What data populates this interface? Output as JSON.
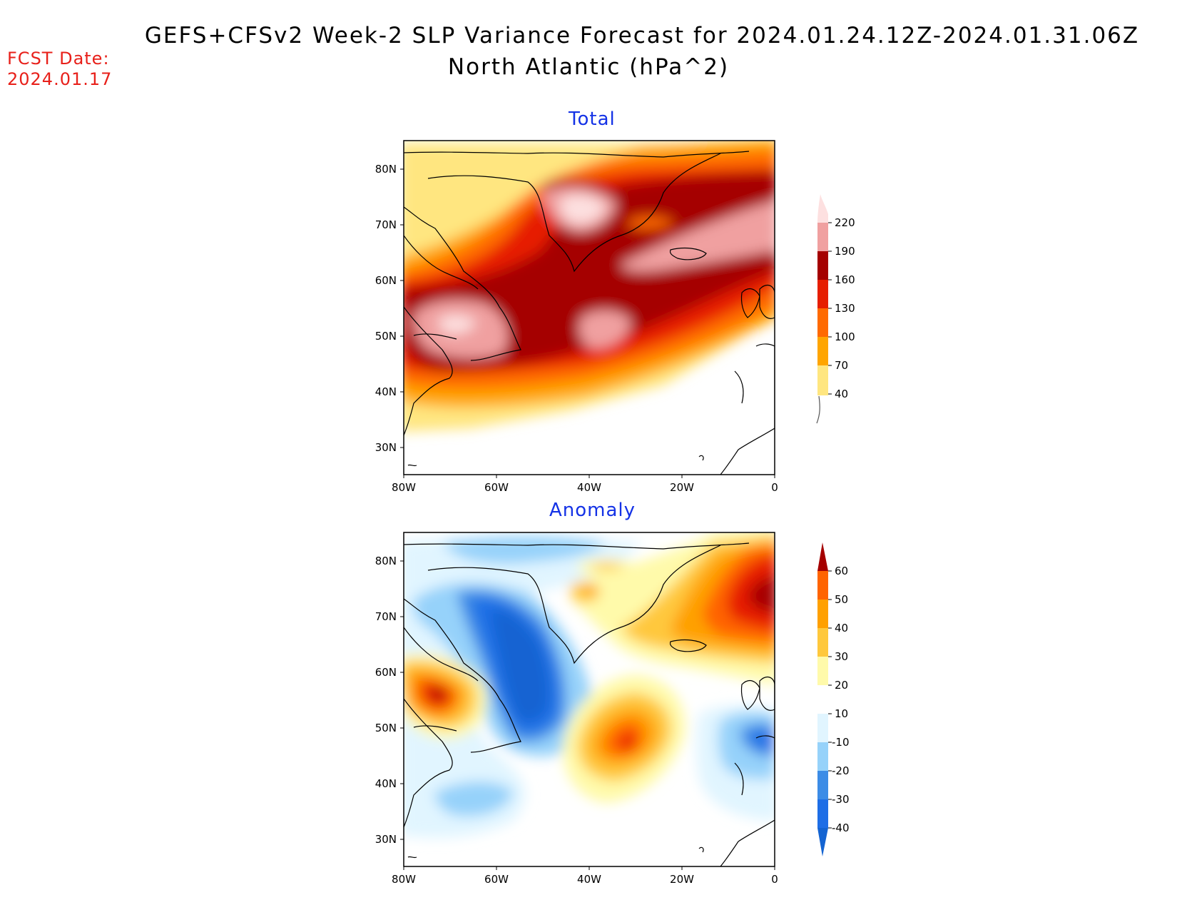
{
  "title": {
    "line1": "GEFS+CFSv2 Week-2 SLP Variance Forecast for 2024.01.24.12Z-2024.01.31.06Z",
    "line2": "North Atlantic (hPa^2)"
  },
  "fcst_date": {
    "label": "FCST Date:",
    "value": "2024.01.17"
  },
  "panels": [
    {
      "title": "Total",
      "lat_ticks": [
        "80N",
        "70N",
        "60N",
        "50N",
        "40N",
        "30N"
      ],
      "lon_ticks": [
        "80W",
        "60W",
        "40W",
        "20W",
        "0"
      ],
      "colorbar": {
        "levels": [
          "40",
          "70",
          "100",
          "130",
          "160",
          "190",
          "220"
        ],
        "colors": [
          "#ffe680",
          "#ffa500",
          "#ff6a00",
          "#e61e00",
          "#a50000",
          "#f0a0a0",
          "#fde0e0"
        ]
      }
    },
    {
      "title": "Anomaly",
      "lat_ticks": [
        "80N",
        "70N",
        "60N",
        "50N",
        "40N",
        "30N"
      ],
      "lon_ticks": [
        "80W",
        "60W",
        "40W",
        "20W",
        "0"
      ],
      "colorbar": {
        "levels": [
          "-40",
          "-30",
          "-20",
          "-10",
          "10",
          "20",
          "30",
          "40",
          "50",
          "60"
        ],
        "colors": [
          "#1464d2",
          "#1e6ee6",
          "#3c8ce6",
          "#96d2fa",
          "#e1f5ff",
          "#ffffff",
          "#fffaaa",
          "#ffc83c",
          "#ffa000",
          "#ff6400",
          "#e61e00",
          "#a50000"
        ]
      }
    }
  ]
}
